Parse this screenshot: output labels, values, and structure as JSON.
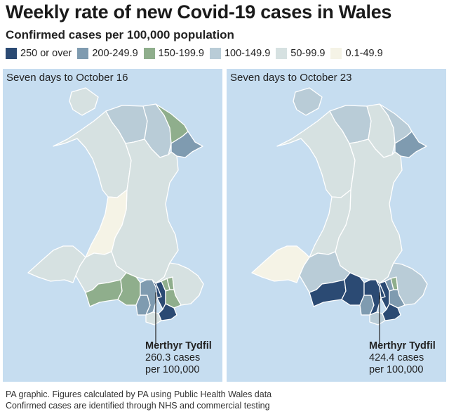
{
  "title": "Weekly rate of new Covid-19 cases in Wales",
  "subtitle": "Confirmed cases per 100,000 population",
  "legend": [
    {
      "label": "250 or over",
      "color": "#2b4a73"
    },
    {
      "label": "200-249.9",
      "color": "#7f9bb0"
    },
    {
      "label": "150-199.9",
      "color": "#8fae8c"
    },
    {
      "label": "100-149.9",
      "color": "#b9ccd7"
    },
    {
      "label": "50-99.9",
      "color": "#d6e1e1"
    },
    {
      "label": "0.1-49.9",
      "color": "#f5f3e6"
    }
  ],
  "colors": {
    "sea": "#c6ddf0",
    "boundary": "#ffffff",
    "leader_line": "#222222"
  },
  "panels": [
    {
      "title": "Seven days to October 16",
      "callout": {
        "name": "Merthyr Tydfil",
        "value": "260.3 cases",
        "unit": "per 100,000"
      }
    },
    {
      "title": "Seven days to October 23",
      "callout": {
        "name": "Merthyr Tydfil",
        "value": "424.4 cases",
        "unit": "per 100,000"
      }
    }
  ],
  "footer": {
    "line1": "PA graphic. Figures calculated by PA using Public Health Wales data",
    "line2": "Confirmed cases are identified through NHS and commercial testing"
  }
}
